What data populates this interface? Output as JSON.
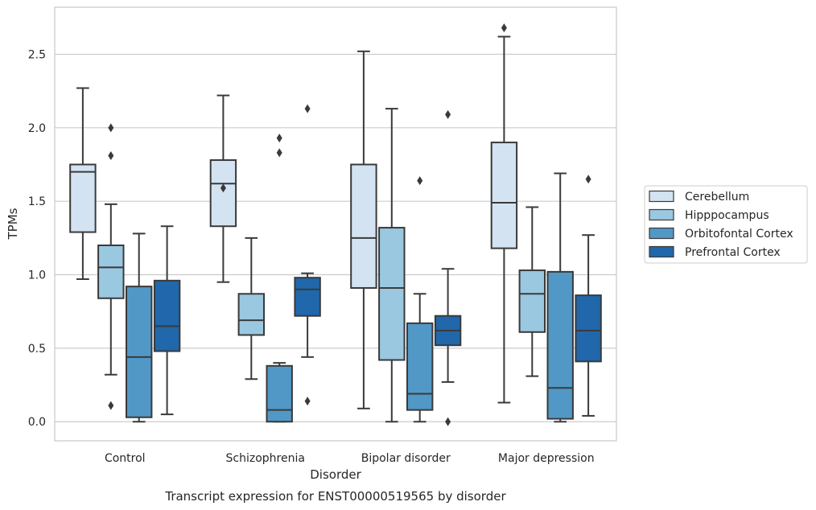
{
  "chart_data": {
    "type": "boxplot",
    "xlabel": "Disorder",
    "ylabel": "TPMs",
    "caption": "Transcript expression for ENST00000519565 by disorder",
    "ylim": [
      -0.13,
      2.82
    ],
    "yticks": [
      0.0,
      0.5,
      1.0,
      1.5,
      2.0,
      2.5
    ],
    "ytick_labels": [
      "0.0",
      "0.5",
      "1.0",
      "1.5",
      "2.0",
      "2.5"
    ],
    "grid": "horizontal",
    "legend_position": "right",
    "categories": [
      "Control",
      "Schizophrenia",
      "Bipolar disorder",
      "Major depression"
    ],
    "series": [
      {
        "name": "Cerebellum",
        "color": "#d3e3f2",
        "boxes": [
          {
            "whislo": 0.97,
            "q1": 1.29,
            "med": 1.7,
            "q3": 1.75,
            "whishi": 2.27,
            "fliers": []
          },
          {
            "whislo": 0.95,
            "q1": 1.33,
            "med": 1.62,
            "q3": 1.78,
            "whishi": 2.22,
            "fliers": [
              1.59
            ]
          },
          {
            "whislo": 0.09,
            "q1": 0.91,
            "med": 1.25,
            "q3": 1.75,
            "whishi": 2.52,
            "fliers": []
          },
          {
            "whislo": 0.13,
            "q1": 1.18,
            "med": 1.49,
            "q3": 1.9,
            "whishi": 2.62,
            "fliers": [
              2.68
            ]
          }
        ]
      },
      {
        "name": "Hipppocampus",
        "color": "#9ac8e0",
        "boxes": [
          {
            "whislo": 0.32,
            "q1": 0.84,
            "med": 1.05,
            "q3": 1.2,
            "whishi": 1.48,
            "fliers": [
              2.0,
              1.81,
              0.11
            ]
          },
          {
            "whislo": 0.29,
            "q1": 0.59,
            "med": 0.69,
            "q3": 0.87,
            "whishi": 1.25,
            "fliers": []
          },
          {
            "whislo": 0.0,
            "q1": 0.42,
            "med": 0.91,
            "q3": 1.32,
            "whishi": 2.13,
            "fliers": []
          },
          {
            "whislo": 0.31,
            "q1": 0.61,
            "med": 0.87,
            "q3": 1.03,
            "whishi": 1.46,
            "fliers": []
          }
        ]
      },
      {
        "name": "Orbitofontal Cortex",
        "color": "#5198c6",
        "boxes": [
          {
            "whislo": 0.0,
            "q1": 0.03,
            "med": 0.44,
            "q3": 0.92,
            "whishi": 1.28,
            "fliers": []
          },
          {
            "whislo": 0.0,
            "q1": 0.0,
            "med": 0.08,
            "q3": 0.38,
            "whishi": 0.4,
            "fliers": [
              1.93,
              1.83
            ]
          },
          {
            "whislo": 0.0,
            "q1": 0.08,
            "med": 0.19,
            "q3": 0.67,
            "whishi": 0.87,
            "fliers": [
              1.64
            ]
          },
          {
            "whislo": 0.0,
            "q1": 0.02,
            "med": 0.23,
            "q3": 1.02,
            "whishi": 1.69,
            "fliers": []
          }
        ]
      },
      {
        "name": "Prefrontal Cortex",
        "color": "#2067ab",
        "boxes": [
          {
            "whislo": 0.05,
            "q1": 0.48,
            "med": 0.65,
            "q3": 0.96,
            "whishi": 1.33,
            "fliers": []
          },
          {
            "whislo": 0.44,
            "q1": 0.72,
            "med": 0.9,
            "q3": 0.98,
            "whishi": 1.01,
            "fliers": [
              2.13,
              0.14
            ]
          },
          {
            "whislo": 0.27,
            "q1": 0.52,
            "med": 0.62,
            "q3": 0.72,
            "whishi": 1.04,
            "fliers": [
              2.09,
              0.0
            ]
          },
          {
            "whislo": 0.04,
            "q1": 0.41,
            "med": 0.62,
            "q3": 0.86,
            "whishi": 1.27,
            "fliers": [
              1.65
            ]
          }
        ]
      }
    ]
  }
}
